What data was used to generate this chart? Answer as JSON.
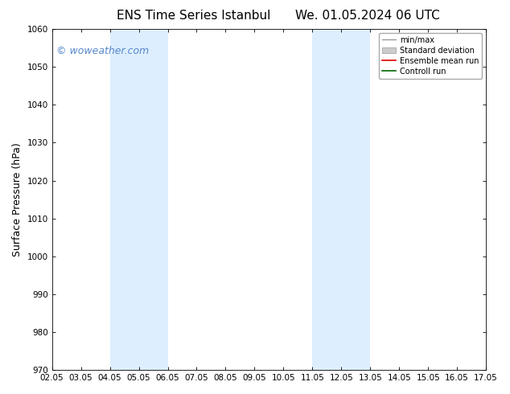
{
  "title_left": "ENS Time Series Istanbul",
  "title_right": "We. 01.05.2024 06 UTC",
  "ylabel": "Surface Pressure (hPa)",
  "xlabel": "",
  "ylim": [
    970,
    1060
  ],
  "yticks": [
    970,
    980,
    990,
    1000,
    1010,
    1020,
    1030,
    1040,
    1050,
    1060
  ],
  "xtick_labels": [
    "02.05",
    "03.05",
    "04.05",
    "05.05",
    "06.05",
    "07.05",
    "08.05",
    "09.05",
    "10.05",
    "11.05",
    "12.05",
    "13.05",
    "14.05",
    "15.05",
    "16.05",
    "17.05"
  ],
  "xtick_positions": [
    0,
    1,
    2,
    3,
    4,
    5,
    6,
    7,
    8,
    9,
    10,
    11,
    12,
    13,
    14,
    15
  ],
  "shaded_bands": [
    {
      "x_start": 2,
      "x_end": 4,
      "color": "#ddeeff"
    },
    {
      "x_start": 9,
      "x_end": 11,
      "color": "#ddeeff"
    }
  ],
  "watermark_text": "© woweather.com",
  "watermark_color": "#5588cc",
  "watermark_fontsize": 9,
  "background_color": "#ffffff",
  "plot_bg_color": "#ffffff",
  "legend_labels": [
    "min/max",
    "Standard deviation",
    "Ensemble mean run",
    "Controll run"
  ],
  "legend_line_colors": [
    "#999999",
    "#bbbbbb",
    "#dd0000",
    "#006600"
  ],
  "legend_patch_color": "#cccccc",
  "title_fontsize": 11,
  "axis_label_fontsize": 9,
  "tick_fontsize": 7.5
}
